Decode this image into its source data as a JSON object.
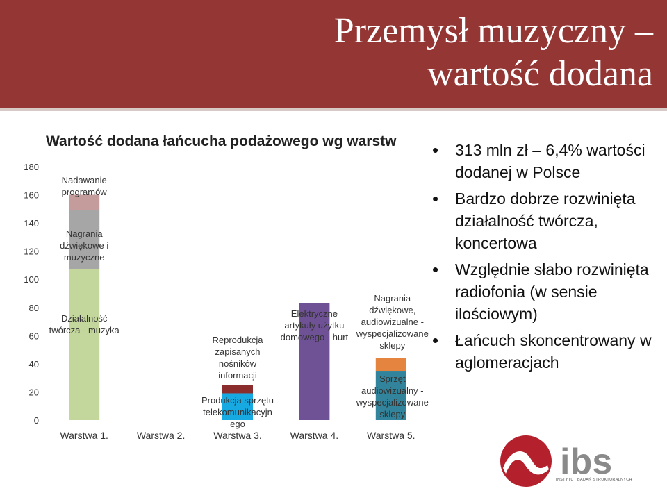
{
  "slide": {
    "title_line1": "Przemysł muzyczny –",
    "title_line2": "wartość dodana"
  },
  "bullets": [
    "313 mln zł – 6,4% wartości dodanej w Polsce",
    "Bardzo dobrze rozwinięta działalność twórcza, koncertowa",
    "Względnie słabo rozwinięta radiofonia (w sensie ilościowym)",
    "Łańcuch skoncentrowany w aglomeracjach"
  ],
  "logo": {
    "name": "ibs-logo",
    "text": "ibs",
    "caption": "INSTYTUT BADAŃ STRUKTURALNYCH"
  },
  "chart_data": {
    "type": "bar",
    "stacked": true,
    "title": "Wartość dodana łańcucha podażowego wg warstw",
    "categories": [
      "Warstwa 1.",
      "Warstwa 2.",
      "Warstwa 3.",
      "Warstwa 4.",
      "Warstwa 5."
    ],
    "ylim": [
      0,
      180
    ],
    "yticks": [
      0,
      20,
      40,
      60,
      80,
      100,
      120,
      140,
      160,
      180
    ],
    "grid": false,
    "colors": {
      "Działalność twórcza - muzyka": "#c3d69b",
      "Nagrania dźwiękowe i muzyczne": "#a6a6a6",
      "Nadawanie programów": "#c49c9c",
      "Produkcja sprzętu telekomunikacyjnego": "#17a9e1",
      "Reprodukcja zapisanych nośników informacji": "#8c2d2d",
      "Elektryczne artykuły użytku domowego - hurt": "#6f5195",
      "Sprzęt audiowizualny - wyspecjalizowane sklepy": "#31849b",
      "Nagrania dźwiękowe, audiowizualne - wyspecjalizowane sklepy": "#e5843e"
    },
    "stacks": [
      {
        "category": "Warstwa 1.",
        "segments": [
          {
            "label": "Działalność twórcza - muzyka",
            "value": 107
          },
          {
            "label": "Nagrania dźwiękowe i muzyczne",
            "value": 42
          },
          {
            "label": "Nadawanie programów",
            "value": 11
          }
        ]
      },
      {
        "category": "Warstwa 2.",
        "segments": []
      },
      {
        "category": "Warstwa 3.",
        "segments": [
          {
            "label": "Produkcja sprzętu telekomunikacyjnego",
            "value": 19
          },
          {
            "label": "Reprodukcja zapisanych nośników informacji",
            "value": 6
          }
        ]
      },
      {
        "category": "Warstwa 4.",
        "segments": [
          {
            "label": "Elektryczne artykuły użytku domowego - hurt",
            "value": 83
          }
        ]
      },
      {
        "category": "Warstwa 5.",
        "segments": [
          {
            "label": "Sprzęt audiowizualny - wyspecjalizowane sklepy",
            "value": 35
          },
          {
            "label": "Nagrania dźwiękowe, audiowizualne - wyspecjalizowane sklepy",
            "value": 9
          }
        ]
      }
    ],
    "annotations": [
      {
        "category": "Warstwa 1.",
        "lines": [
          "Nadawanie",
          "programów"
        ]
      },
      {
        "category": "Warstwa 1.",
        "lines": [
          "Nagrania",
          "dźwiękowe i",
          "muzyczne"
        ]
      },
      {
        "category": "Warstwa 1.",
        "lines": [
          "Działalność",
          "twórcza - muzyka"
        ]
      },
      {
        "category": "Warstwa 3.",
        "lines": [
          "Reprodukcja",
          "zapisanych",
          "nośników",
          "informacji"
        ]
      },
      {
        "category": "Warstwa 3.",
        "lines": [
          "Produkcja sprzętu",
          "telekomunikacyjn",
          "ego"
        ]
      },
      {
        "category": "Warstwa 4.",
        "lines": [
          "Elektryczne",
          "artykuły użytku",
          "domowego - hurt"
        ]
      },
      {
        "category": "Warstwa 5.",
        "lines": [
          "Nagrania",
          "dźwiękowe,",
          "audiowizualne -",
          "wyspecjalizowane",
          "sklepy"
        ]
      },
      {
        "category": "Warstwa 5.",
        "lines": [
          "Sprzęt",
          "audiowizualny -",
          "wyspecjalizowane",
          "sklepy"
        ]
      }
    ]
  }
}
